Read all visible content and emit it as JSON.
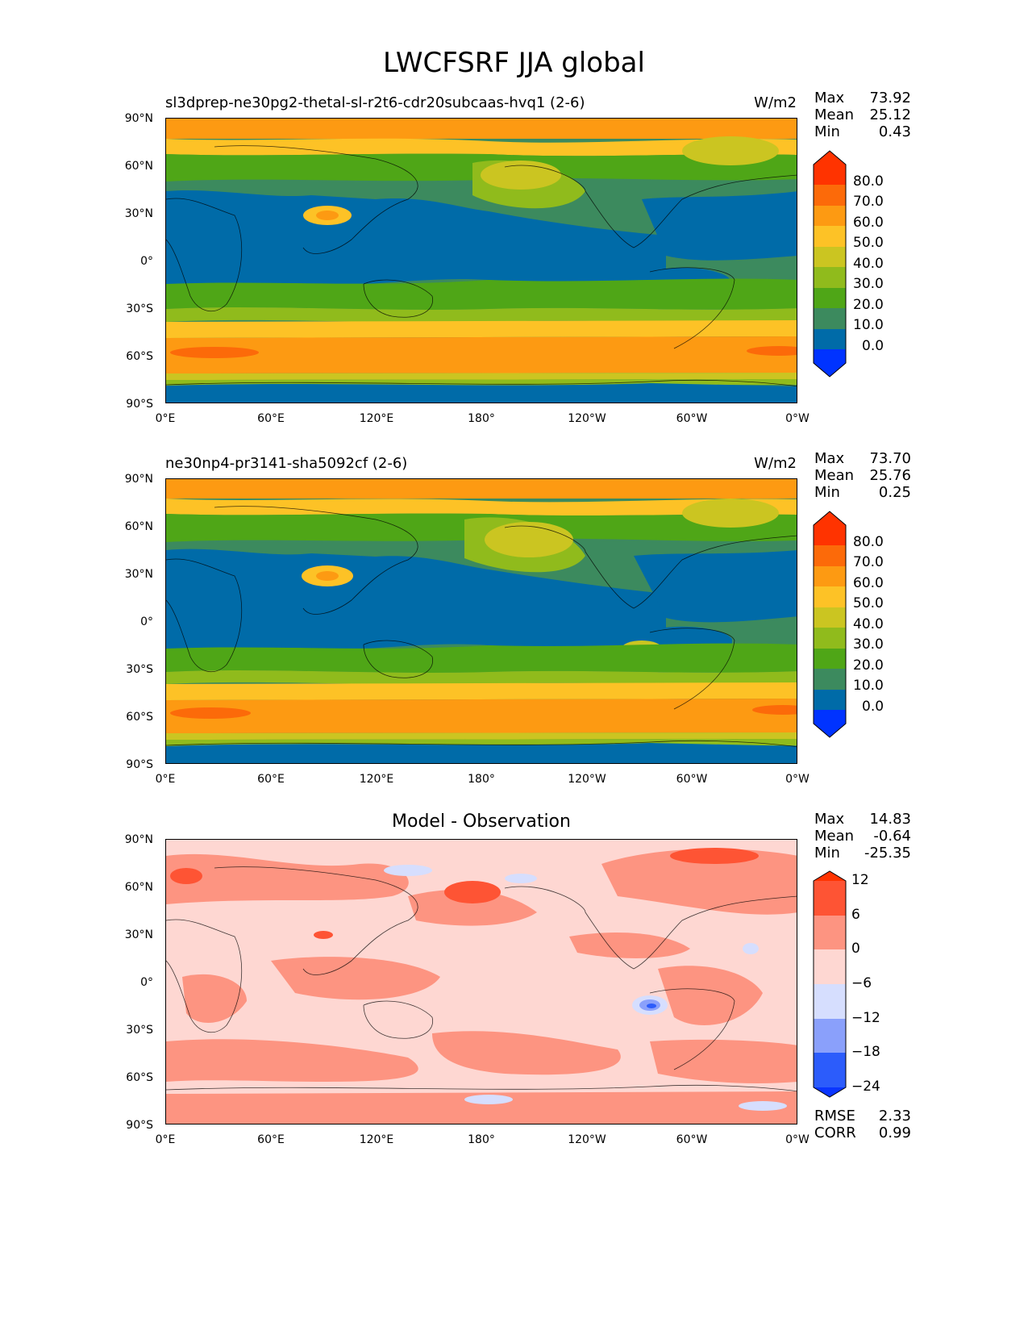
{
  "figure": {
    "title": "LWCFSRF JJA global"
  },
  "panels": [
    {
      "title": "sl3dprep-ne30pg2-thetal-sl-r2t6-cdr20subcaas-hvq1 (2-6)",
      "units": "W/m2",
      "stats": [
        {
          "label": "Max",
          "value": "73.92"
        },
        {
          "label": "Mean",
          "value": "25.12"
        },
        {
          "label": "Min",
          "value": "0.43"
        }
      ],
      "colorbar_labels": [
        "80.0",
        "70.0",
        "60.0",
        "50.0",
        "40.0",
        "30.0",
        "20.0",
        "10.0",
        "0.0"
      ]
    },
    {
      "title": "ne30np4-pr3141-sha5092cf (2-6)",
      "units": "W/m2",
      "stats": [
        {
          "label": "Max",
          "value": "73.70"
        },
        {
          "label": "Mean",
          "value": "25.76"
        },
        {
          "label": "Min",
          "value": "0.25"
        }
      ],
      "colorbar_labels": [
        "80.0",
        "70.0",
        "60.0",
        "50.0",
        "40.0",
        "30.0",
        "20.0",
        "10.0",
        "0.0"
      ]
    },
    {
      "title": "Model - Observation",
      "units": "",
      "stats": [
        {
          "label": "Max",
          "value": "14.83"
        },
        {
          "label": "Mean",
          "value": "-0.64"
        },
        {
          "label": "Min",
          "value": "-25.35"
        }
      ],
      "colorbar_labels": [
        "12",
        "6",
        "0",
        "−6",
        "−12",
        "−18",
        "−24"
      ],
      "metrics": [
        {
          "label": "RMSE",
          "value": "2.33"
        },
        {
          "label": "CORR",
          "value": "0.99"
        }
      ]
    }
  ],
  "axes": {
    "lat_ticks": [
      "90°N",
      "60°N",
      "30°N",
      "0°",
      "30°S",
      "60°S",
      "90°S"
    ],
    "lon_ticks": [
      "0°E",
      "60°E",
      "120°E",
      "180°",
      "120°W",
      "60°W",
      "0°W"
    ]
  },
  "colors": {
    "field": [
      "#0033ff",
      "#006ba8",
      "#3c8a5e",
      "#4fa617",
      "#90bb1c",
      "#cbc521",
      "#fdc226",
      "#fd9a12",
      "#fc6a09",
      "#ff3300"
    ],
    "diff": [
      "#0a35ff",
      "#2c5cfb",
      "#8aa0fb",
      "#d6defe",
      "#fed7d2",
      "#fd9481",
      "#fe5434",
      "#ff3300"
    ]
  }
}
